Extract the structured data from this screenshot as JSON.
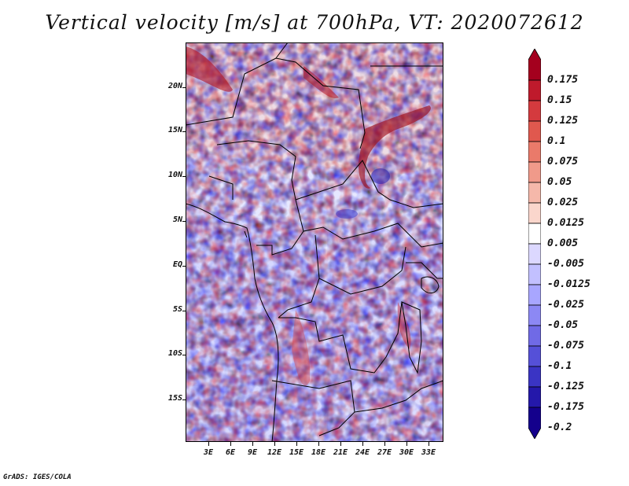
{
  "title": "Vertical velocity [m/s] at 700hPa, VT: 2020072612",
  "footer": "GrADS: IGES/COLA",
  "lat_ticks": [
    "20N",
    "15N",
    "10N",
    "5N",
    "EQ",
    "5S",
    "10S",
    "15S"
  ],
  "lon_ticks": [
    "3E",
    "6E",
    "9E",
    "12E",
    "15E",
    "18E",
    "21E",
    "24E",
    "27E",
    "30E",
    "33E"
  ],
  "colorbar": {
    "levels": [
      "0.175",
      "0.15",
      "0.125",
      "0.1",
      "0.075",
      "0.05",
      "0.025",
      "0.0125",
      "0.005",
      "-0.005",
      "-0.0125",
      "-0.025",
      "-0.05",
      "-0.075",
      "-0.1",
      "-0.125",
      "-0.175",
      "-0.2"
    ],
    "colors": [
      "#a4001e",
      "#bf1a2c",
      "#d43a3e",
      "#e0584e",
      "#ea7a6a",
      "#f09a8a",
      "#f5b8aa",
      "#fad6cc",
      "#ffffff",
      "#dcd8ff",
      "#c2c0ff",
      "#a8a6ff",
      "#8c88f4",
      "#706ae6",
      "#5550d8",
      "#3a34c4",
      "#2418aa",
      "#14008c"
    ]
  }
}
